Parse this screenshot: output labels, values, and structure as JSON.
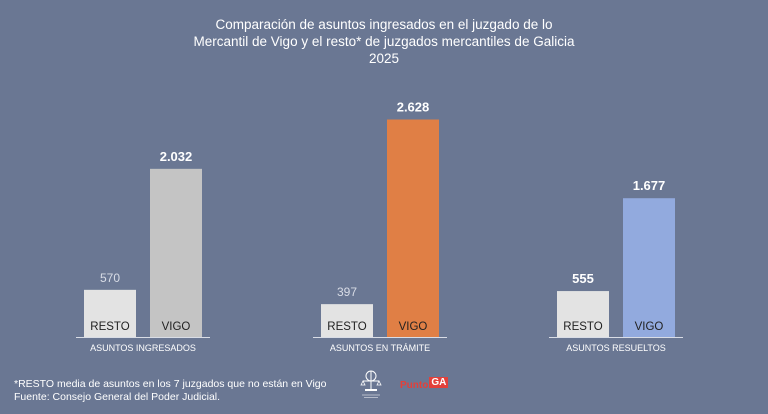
{
  "title_lines": [
    "Comparación de asuntos ingresados en el juzgado de lo",
    "Mercantil de Vigo y el resto* de juzgados mercantiles de Galicia",
    "2025"
  ],
  "footnote_lines": [
    "*RESTO media de asuntos en los 7 juzgados que no están en Vigo",
    "Fuente: Consejo General del Poder Judicial."
  ],
  "logo": {
    "text": "Punto",
    "badge": "GA"
  },
  "seal": {
    "name": "seal-icon"
  },
  "chart_data": {
    "type": "bar",
    "groups": [
      {
        "label": "ASUNTOS INGRESADOS",
        "bars": [
          {
            "name": "RESTO",
            "value": 570,
            "value_label": "570",
            "color": "#e3e3e3",
            "label_bold": false
          },
          {
            "name": "VIGO",
            "value": 2032,
            "value_label": "2.032",
            "color": "#c4c4c4",
            "label_bold": true
          }
        ]
      },
      {
        "label": "ASUNTOS EN TRÁMITE",
        "bars": [
          {
            "name": "RESTO",
            "value": 397,
            "value_label": "397",
            "color": "#e3e3e3",
            "label_bold": false
          },
          {
            "name": "VIGO",
            "value": 2628,
            "value_label": "2.628",
            "color": "#e07f45",
            "label_bold": true
          }
        ]
      },
      {
        "label": "ASUNTOS RESUELTOS",
        "bars": [
          {
            "name": "RESTO",
            "value": 555,
            "value_label": "555",
            "color": "#e3e3e3",
            "label_bold": true
          },
          {
            "name": "VIGO",
            "value": 1677,
            "value_label": "1.677",
            "color": "#92aade",
            "label_bold": true
          }
        ]
      }
    ],
    "ylim": [
      0,
      2900
    ],
    "grid": false,
    "legend": "none",
    "colors": {
      "background": "#6a7793",
      "text": "#ffffff",
      "label_dark": "#222222"
    }
  }
}
